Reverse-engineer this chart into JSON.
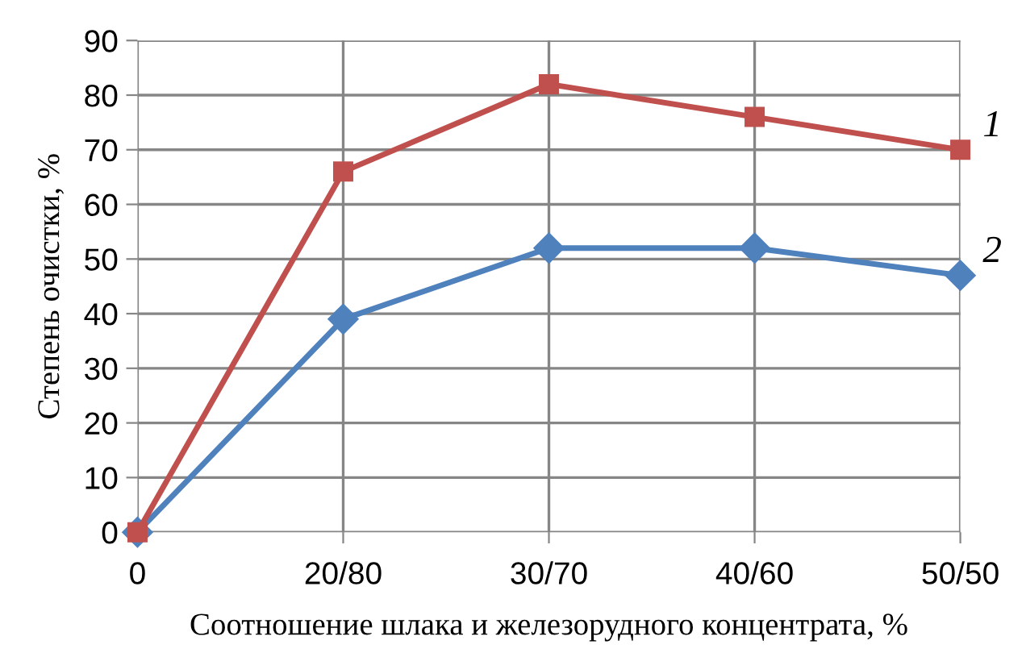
{
  "chart_data": {
    "type": "line",
    "xlabel": "Соотношение шлака и железорудного концентрата, %",
    "ylabel": "Степень очистки, %",
    "categories": [
      "0",
      "20/80",
      "30/70",
      "40/60",
      "50/50"
    ],
    "series": [
      {
        "name": "1",
        "color": "#c0504d",
        "marker": "square",
        "values": [
          0,
          66,
          82,
          76,
          70
        ]
      },
      {
        "name": "2",
        "color": "#4f81bd",
        "marker": "diamond",
        "values": [
          0,
          39,
          52,
          52,
          47
        ]
      }
    ],
    "ylim": [
      0,
      90
    ],
    "yticks": [
      0,
      10,
      20,
      30,
      40,
      50,
      60,
      70,
      80,
      90
    ],
    "grid": true,
    "line_style": "solid"
  }
}
